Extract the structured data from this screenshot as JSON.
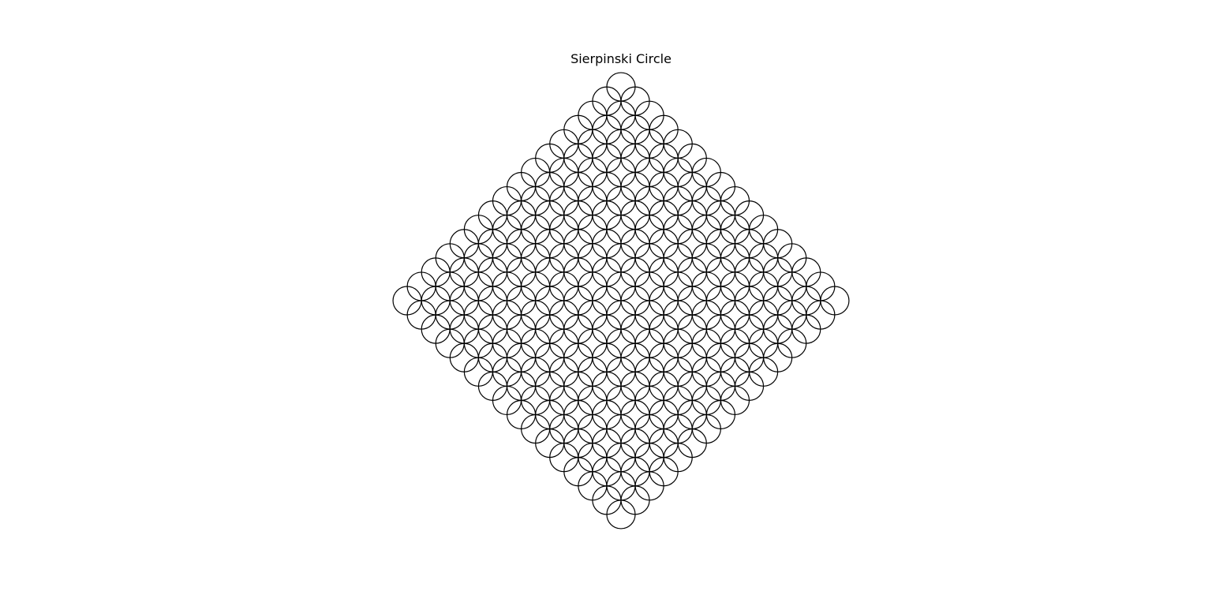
{
  "figure": {
    "title": "Sierpinski Circle",
    "background_color": "#ffffff",
    "stroke_color": "#000000"
  },
  "chart_data": {
    "type": "diagram",
    "title": "Sierpinski Circle",
    "shape": "circle",
    "arrangement": "diamond-shaped lattice of overlapping circles",
    "recursion": {
      "levels": 4,
      "offsets_per_level": [
        [
          0,
          1
        ],
        [
          0,
          -1
        ],
        [
          1,
          0
        ],
        [
          -1,
          0
        ]
      ],
      "scale": 0.5
    },
    "axes": "off",
    "grid": false
  }
}
